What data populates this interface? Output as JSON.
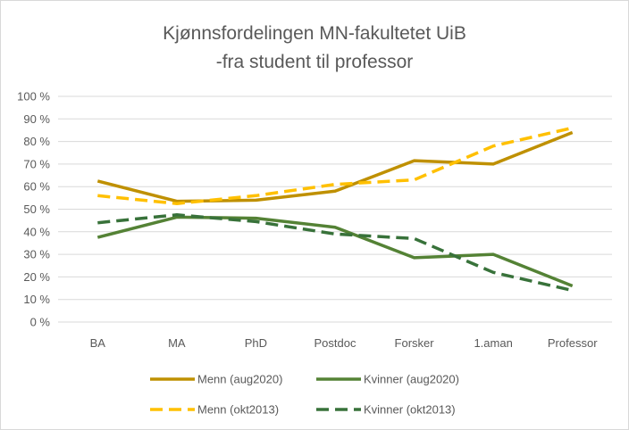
{
  "chart_data": {
    "type": "line",
    "title_lines": [
      "Kjønnsfordelingen MN-fakultetet UiB",
      "-fra student til professor"
    ],
    "categories": [
      "BA",
      "MA",
      "PhD",
      "Postdoc",
      "Forsker",
      "1.aman",
      "Professor"
    ],
    "y_ticks": [
      "0 %",
      "10 %",
      "20 %",
      "30 %",
      "40 %",
      "50 %",
      "60 %",
      "70 %",
      "80 %",
      "90 %",
      "100 %"
    ],
    "ylim": [
      0,
      100
    ],
    "grid": true,
    "legend_position": "bottom",
    "series": [
      {
        "name": "Menn (aug2020)",
        "values": [
          62.5,
          53.5,
          54,
          58,
          71.5,
          70,
          84
        ],
        "color": "#bf9000",
        "dash": false
      },
      {
        "name": "Kvinner (aug2020)",
        "values": [
          37.5,
          46.5,
          46,
          42,
          28.5,
          30,
          16
        ],
        "color": "#548235",
        "dash": false
      },
      {
        "name": "Menn (okt2013)",
        "values": [
          56,
          52.5,
          56,
          61,
          63,
          78,
          86
        ],
        "color": "#ffc000",
        "dash": true
      },
      {
        "name": "Kvinner (okt2013)",
        "values": [
          44,
          47.5,
          44.5,
          39,
          37,
          22,
          14
        ],
        "color": "#38723a",
        "dash": true
      }
    ]
  }
}
